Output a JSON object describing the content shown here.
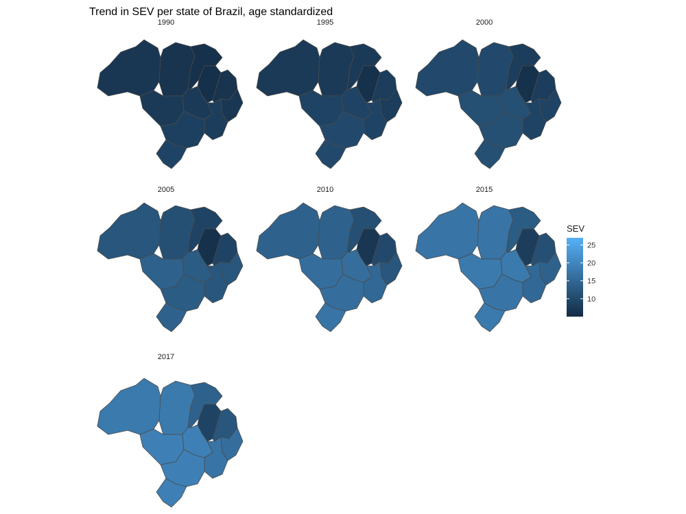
{
  "title": "Trend in SEV per state of Brazil, age standardized",
  "legend": {
    "title": "SEV",
    "min": 5,
    "max": 27,
    "ticks": [
      10,
      15,
      20,
      25
    ],
    "low_color": "#132B43",
    "high_color": "#56B1F7"
  },
  "panels": [
    {
      "year": "1990",
      "sev": {
        "north": 7,
        "amazon": 6.5,
        "para": 6,
        "ne_upper": 5.8,
        "ne_inner": 6.5,
        "ne_lower": 7,
        "center": 7.5,
        "mid": 7.5,
        "bahia": 8,
        "south": 8.5,
        "sul": 9
      }
    },
    {
      "year": "1995",
      "sev": {
        "north": 7.5,
        "amazon": 7.5,
        "para": 7.5,
        "ne_upper": 6,
        "ne_inner": 8,
        "ne_lower": 8,
        "center": 9,
        "mid": 9,
        "bahia": 9,
        "south": 10,
        "sul": 10
      }
    },
    {
      "year": "2000",
      "sev": {
        "north": 10,
        "amazon": 10,
        "para": 8,
        "ne_upper": 6,
        "ne_inner": 8,
        "ne_lower": 9,
        "center": 11,
        "mid": 11,
        "bahia": 9,
        "south": 11,
        "sul": 11
      }
    },
    {
      "year": "2005",
      "sev": {
        "north": 12,
        "amazon": 11,
        "para": 9,
        "ne_upper": 6,
        "ne_inner": 9,
        "ne_lower": 12,
        "center": 14,
        "mid": 13,
        "bahia": 12,
        "south": 13,
        "sul": 14
      }
    },
    {
      "year": "2010",
      "sev": {
        "north": 14,
        "amazon": 14,
        "para": 11,
        "ne_upper": 7,
        "ne_inner": 10,
        "ne_lower": 12,
        "center": 16,
        "mid": 16,
        "bahia": 15,
        "south": 16,
        "sul": 17
      }
    },
    {
      "year": "2015",
      "sev": {
        "north": 17,
        "amazon": 17,
        "para": 13,
        "ne_upper": 8,
        "ne_inner": 11,
        "ne_lower": 14,
        "center": 18,
        "mid": 18,
        "bahia": 15,
        "south": 17,
        "sul": 18
      }
    },
    {
      "year": "2017",
      "sev": {
        "north": 18,
        "amazon": 18,
        "para": 14,
        "ne_upper": 9,
        "ne_inner": 12,
        "ne_lower": 16,
        "center": 19,
        "mid": 19,
        "bahia": 17,
        "south": 19,
        "sul": 19
      }
    }
  ]
}
